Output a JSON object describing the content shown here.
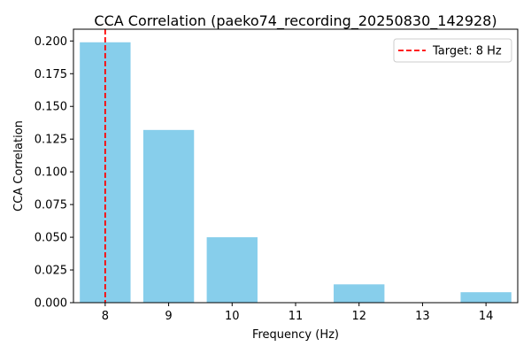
{
  "chart_data": {
    "type": "bar",
    "title": "CCA Correlation (paeko74_recording_20250830_142928)",
    "xlabel": "Frequency (Hz)",
    "ylabel": "CCA Correlation",
    "categories": [
      8,
      9,
      10,
      11,
      12,
      13,
      14
    ],
    "values": [
      0.199,
      0.132,
      0.05,
      0.0,
      0.014,
      0.0,
      0.008
    ],
    "xlim": [
      7.5,
      14.5
    ],
    "ylim": [
      0,
      0.209
    ],
    "yticks": [
      "0.000",
      "0.025",
      "0.050",
      "0.075",
      "0.100",
      "0.125",
      "0.150",
      "0.175",
      "0.200"
    ],
    "xticks": [
      "8",
      "9",
      "10",
      "11",
      "12",
      "13",
      "14"
    ],
    "bar_color": "#87ceeb",
    "target": {
      "x": 8,
      "label": "Target: 8 Hz",
      "color": "#ff0000",
      "style": "dashed"
    },
    "legend": {
      "location": "upper right"
    },
    "grid": false
  }
}
